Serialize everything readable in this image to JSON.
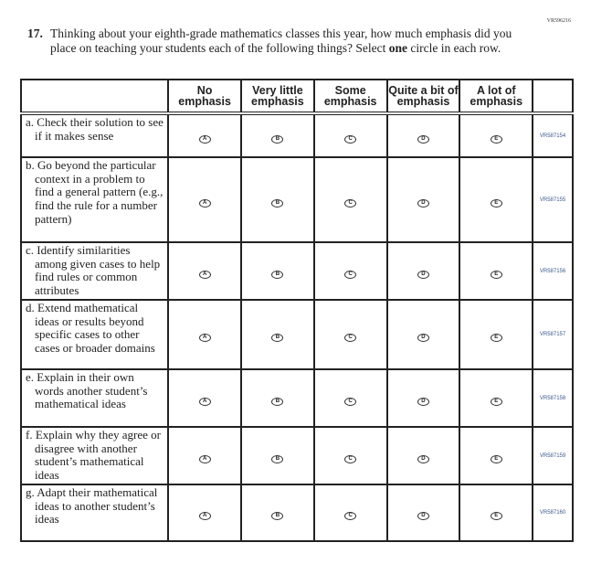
{
  "form_code": "VR596216",
  "question": {
    "number": "17.",
    "text_before": "Thinking about your eighth-grade mathematics classes this year, how much emphasis did you place on teaching your students each of the following things? Select ",
    "bold": "one",
    "text_after": " circle in each row."
  },
  "columns": [
    "No emphasis",
    "Very little emphasis",
    "Some emphasis",
    "Quite a bit of emphasis",
    "A lot of emphasis"
  ],
  "bubbles": [
    "A",
    "B",
    "C",
    "D",
    "E"
  ],
  "rows": [
    {
      "label": "a. Check their solution to see if it makes sense",
      "id": "VR587154",
      "h": 48
    },
    {
      "label": "b. Go beyond the particular context in a problem to find a general pattern (e.g., find the rule for a number pattern)",
      "id": "VR587155",
      "h": 93
    },
    {
      "label": "c. Identify similarities among given cases to help find rules or common attributes",
      "id": "VR587156",
      "h": 63
    },
    {
      "label": "d. Extend mathematical ideas or results beyond specific cases to other cases or broader domains",
      "id": "VR587157",
      "h": 76
    },
    {
      "label": "e. Explain in their own words another student’s mathematical ideas",
      "id": "VR587158",
      "h": 63
    },
    {
      "label": "f. Explain why they agree or disagree with another student’s mathematical ideas",
      "id": "VR587159",
      "h": 63
    },
    {
      "label": "g. Adapt their mathematical ideas to another student’s ideas",
      "id": "VR587160",
      "h": 62
    }
  ]
}
